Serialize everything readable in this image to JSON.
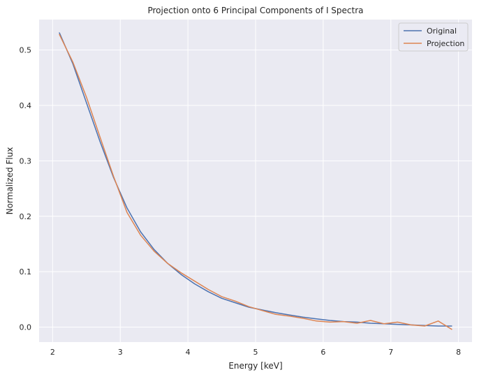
{
  "chart_data": {
    "type": "line",
    "title": "Projection onto 6 Principal Components of I Spectra",
    "xlabel": "Energy [keV]",
    "ylabel": "Normalized Flux",
    "xlim": [
      1.8,
      8.2
    ],
    "ylim": [
      -0.027,
      0.555
    ],
    "x_ticks": [
      2,
      3,
      4,
      5,
      6,
      7,
      8
    ],
    "y_ticks": [
      0.0,
      0.1,
      0.2,
      0.3,
      0.4,
      0.5
    ],
    "x_tick_labels": [
      "2",
      "3",
      "4",
      "5",
      "6",
      "7",
      "8"
    ],
    "y_tick_labels": [
      "0.0",
      "0.1",
      "0.2",
      "0.3",
      "0.4",
      "0.5"
    ],
    "grid": true,
    "legend_position": "top-right",
    "x": [
      2.1,
      2.3,
      2.5,
      2.7,
      2.9,
      3.1,
      3.3,
      3.5,
      3.7,
      3.9,
      4.1,
      4.3,
      4.5,
      4.7,
      4.9,
      5.1,
      5.3,
      5.5,
      5.7,
      5.9,
      6.1,
      6.3,
      6.5,
      6.7,
      6.9,
      7.1,
      7.3,
      7.5,
      7.7,
      7.9
    ],
    "series": [
      {
        "name": "Original",
        "color": "#4c72b0",
        "values": [
          0.531,
          0.475,
          0.405,
          0.335,
          0.27,
          0.215,
          0.172,
          0.14,
          0.115,
          0.095,
          0.078,
          0.064,
          0.052,
          0.044,
          0.036,
          0.031,
          0.026,
          0.022,
          0.018,
          0.015,
          0.012,
          0.01,
          0.009,
          0.007,
          0.006,
          0.005,
          0.004,
          0.003,
          0.002,
          0.002
        ]
      },
      {
        "name": "Projection",
        "color": "#dd8452",
        "values": [
          0.528,
          0.478,
          0.415,
          0.343,
          0.272,
          0.207,
          0.166,
          0.137,
          0.115,
          0.098,
          0.083,
          0.068,
          0.055,
          0.047,
          0.037,
          0.03,
          0.023,
          0.02,
          0.016,
          0.011,
          0.009,
          0.01,
          0.007,
          0.012,
          0.006,
          0.009,
          0.004,
          0.002,
          0.011,
          -0.004
        ]
      }
    ]
  }
}
